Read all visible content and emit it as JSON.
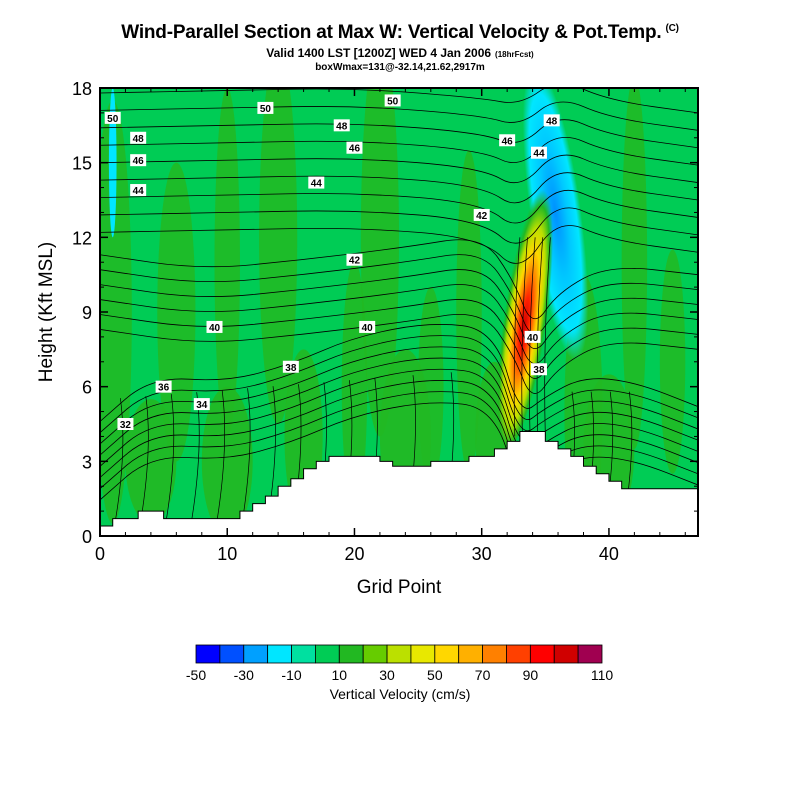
{
  "header": {
    "title": "Wind-Parallel Section at Max W: Vertical Velocity & Pot.Temp.",
    "title_tag": "(C)",
    "subtitle": "Valid 1400 LST [1200Z] WED 4 Jan 2006",
    "forecast_tag": "(18hrFcst)",
    "info": "boxWmax=131@-32.14,21.62,2917m"
  },
  "chart_data": {
    "type": "contour",
    "xlabel": "Grid Point",
    "ylabel": "Height (Kft MSL)",
    "xlim": [
      0,
      47
    ],
    "ylim": [
      0,
      18
    ],
    "x_ticks": [
      0,
      10,
      20,
      30,
      40
    ],
    "y_ticks": [
      0,
      3,
      6,
      9,
      12,
      15,
      18
    ],
    "terrain": {
      "x": [
        0,
        1,
        1,
        3,
        3,
        5,
        5,
        11,
        11,
        12,
        12,
        13,
        13,
        14,
        14,
        15,
        15,
        16,
        16,
        17,
        17,
        18,
        18,
        22,
        22,
        23,
        23,
        26,
        26,
        29,
        29,
        31,
        31,
        32,
        32,
        33,
        33,
        35,
        35,
        36,
        36,
        37,
        37,
        38,
        38,
        39,
        39,
        40,
        40,
        41,
        41,
        47
      ],
      "height_kft": [
        0.4,
        0.4,
        0.7,
        0.7,
        1.0,
        1.0,
        0.7,
        0.7,
        1.0,
        1.0,
        1.3,
        1.3,
        1.6,
        1.6,
        2.0,
        2.0,
        2.3,
        2.3,
        2.7,
        2.7,
        3.0,
        3.0,
        3.2,
        3.2,
        3.0,
        3.0,
        2.8,
        2.8,
        3.0,
        3.0,
        3.2,
        3.2,
        3.5,
        3.5,
        3.8,
        3.8,
        4.2,
        4.2,
        3.8,
        3.8,
        3.5,
        3.5,
        3.2,
        3.2,
        2.8,
        2.8,
        2.5,
        2.5,
        2.2,
        2.2,
        1.9,
        1.9
      ]
    },
    "vertical_velocity": {
      "units": "cm/s",
      "levels": [
        -50,
        -40,
        -30,
        -20,
        -10,
        0,
        10,
        20,
        30,
        40,
        50,
        60,
        70,
        80,
        90,
        100,
        110
      ],
      "colors": [
        "#0000ff",
        "#0050ff",
        "#00a0ff",
        "#00e6ff",
        "#00e0a0",
        "#00cc55",
        "#22b822",
        "#66cc00",
        "#bbe000",
        "#e8e800",
        "#ffd700",
        "#ffb000",
        "#ff8000",
        "#ff4000",
        "#ff0000",
        "#d00000",
        "#a00050"
      ],
      "max_updraft_x": 33.5,
      "max_updraft_height_kft": 9,
      "max_downdraft_x": 35.5,
      "max_downdraft_height_kft": 13
    },
    "potential_temperature": {
      "units": "C",
      "contour_labels": [
        {
          "value": "50",
          "x": 1,
          "y": 16.8
        },
        {
          "value": "50",
          "x": 13,
          "y": 17.2
        },
        {
          "value": "50",
          "x": 23,
          "y": 17.5
        },
        {
          "value": "48",
          "x": 3,
          "y": 16.0
        },
        {
          "value": "48",
          "x": 19,
          "y": 16.5
        },
        {
          "value": "48",
          "x": 35.5,
          "y": 16.7
        },
        {
          "value": "46",
          "x": 3,
          "y": 15.1
        },
        {
          "value": "46",
          "x": 20,
          "y": 15.6
        },
        {
          "value": "46",
          "x": 32,
          "y": 15.9
        },
        {
          "value": "44",
          "x": 3,
          "y": 13.9
        },
        {
          "value": "44",
          "x": 17,
          "y": 14.2
        },
        {
          "value": "44",
          "x": 34.5,
          "y": 15.4
        },
        {
          "value": "42",
          "x": 30,
          "y": 12.9
        },
        {
          "value": "42",
          "x": 20,
          "y": 11.1
        },
        {
          "value": "40",
          "x": 9,
          "y": 8.4
        },
        {
          "value": "40",
          "x": 21,
          "y": 8.4
        },
        {
          "value": "40",
          "x": 34,
          "y": 8.0
        },
        {
          "value": "38",
          "x": 15,
          "y": 6.8
        },
        {
          "value": "38",
          "x": 34.5,
          "y": 6.7
        },
        {
          "value": "36",
          "x": 5,
          "y": 6.0
        },
        {
          "value": "34",
          "x": 8,
          "y": 5.3
        },
        {
          "value": "32",
          "x": 2,
          "y": 4.5
        }
      ]
    }
  },
  "colorbar": {
    "tick_labels": [
      "-50",
      "-30",
      "-10",
      "10",
      "30",
      "50",
      "70",
      "90",
      "110"
    ],
    "title": "Vertical Velocity (cm/s)"
  }
}
